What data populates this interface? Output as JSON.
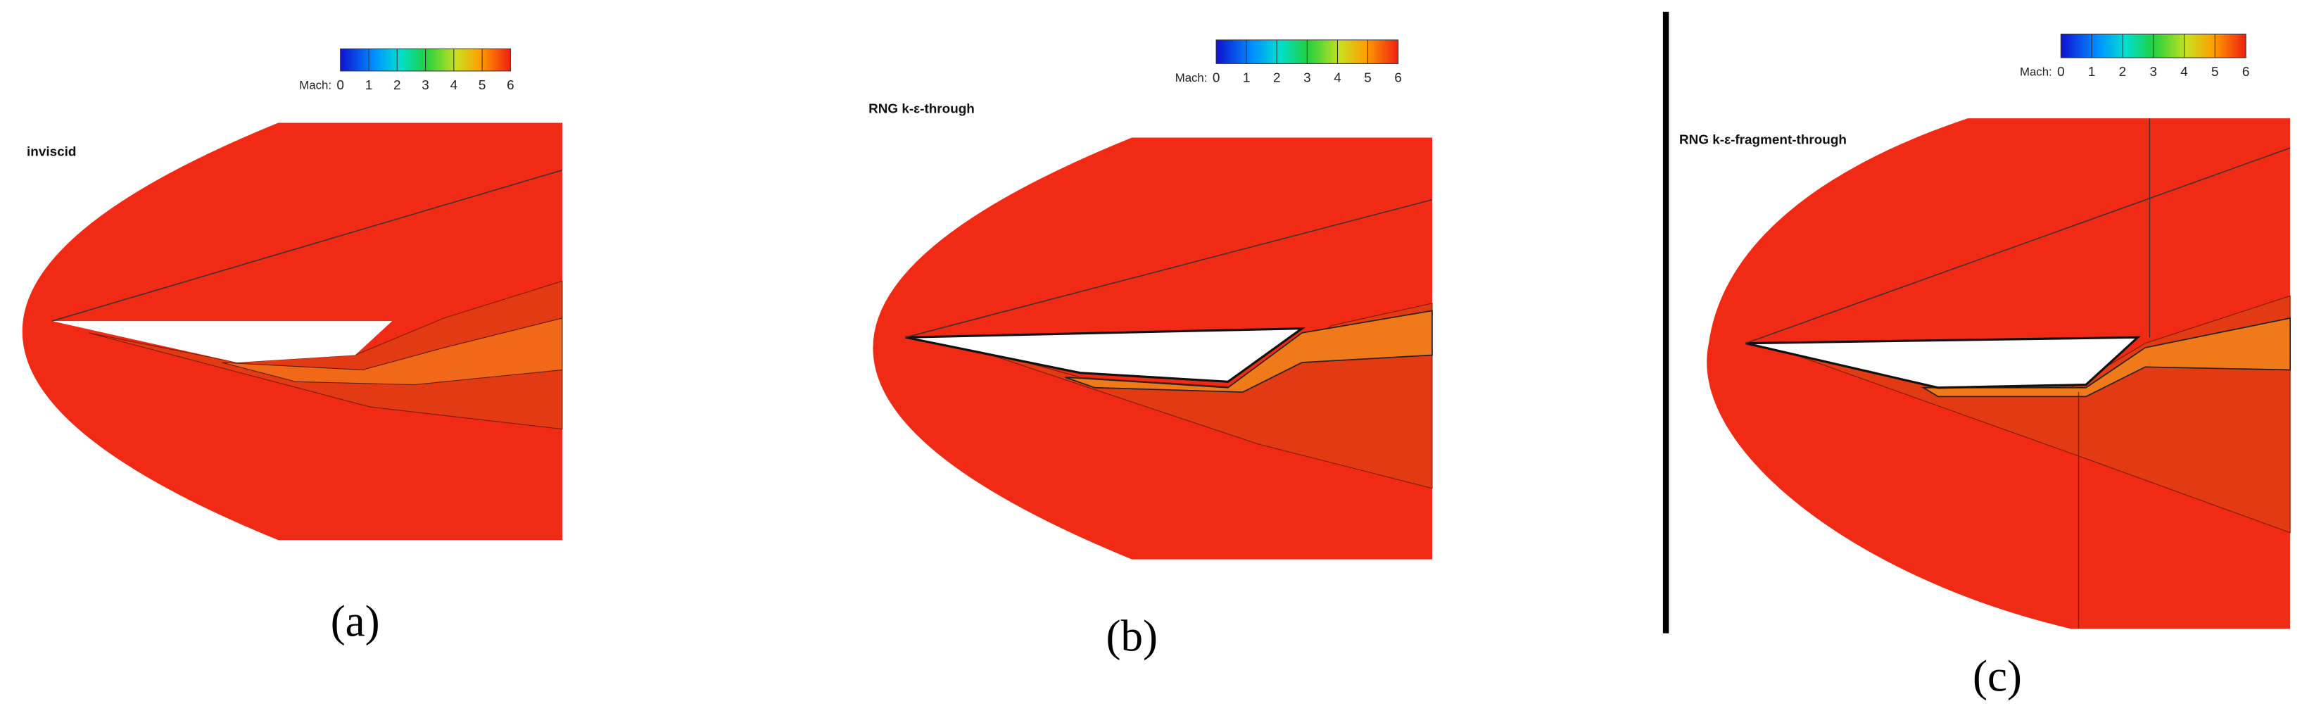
{
  "panels": [
    {
      "label": "inviscid",
      "caption": "(a)",
      "colorbar": {
        "title": "Mach:",
        "ticks": [
          0,
          1,
          2,
          3,
          4,
          5,
          6
        ]
      }
    },
    {
      "label": "RNG k-ε-through",
      "caption": "(b)",
      "colorbar": {
        "title": "Mach:",
        "ticks": [
          0,
          1,
          2,
          3,
          4,
          5,
          6
        ]
      }
    },
    {
      "label": "RNG k-ε-fragment-through",
      "caption": "(c)",
      "colorbar": {
        "title": "Mach:",
        "ticks": [
          0,
          1,
          2,
          3,
          4,
          5,
          6
        ]
      }
    }
  ]
}
